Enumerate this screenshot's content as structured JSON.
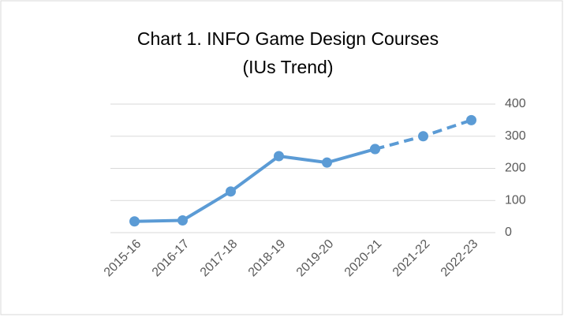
{
  "chart_data": {
    "type": "line",
    "title_lines": [
      "Chart 1. INFO Game Design Courses",
      "(IUs Trend)"
    ],
    "categories": [
      "2015-16",
      "2016-17",
      "2017-18",
      "2018-19",
      "2019-20",
      "2020-21",
      "2021-22",
      "2022-23"
    ],
    "series": [
      {
        "color": "#5b9bd5",
        "dashed": false,
        "values": [
          35,
          38,
          128,
          238,
          218,
          260,
          null,
          null
        ]
      },
      {
        "color": "#5b9bd5",
        "dashed": true,
        "values": [
          null,
          null,
          null,
          null,
          null,
          260,
          300,
          350
        ]
      }
    ],
    "ylim": [
      0,
      400
    ],
    "yticks": [
      0,
      100,
      200,
      300,
      400
    ],
    "grid": true,
    "y_axis_side": "right"
  }
}
